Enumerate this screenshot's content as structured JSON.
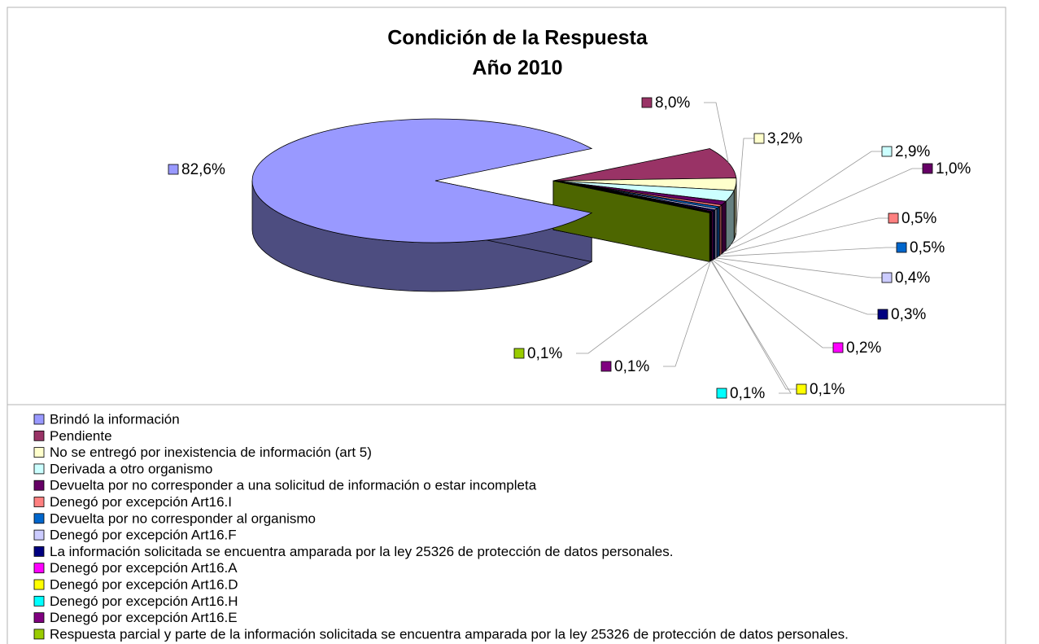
{
  "chart_data": {
    "type": "pie",
    "title": "Condición de la Respuesta",
    "subtitle": "Año 2010",
    "categories": [
      "Brindó la información",
      "Pendiente",
      "No se entregó por inexistencia de información (art 5)",
      "Derivada a otro organismo",
      "Devuelta por no corresponder a una solicitud de información o estar incompleta",
      "Denegó por excepción Art16.I",
      "Devuelta por no corresponder al organismo",
      "Denegó por excepción Art16.F",
      "La información solicitada se encuentra amparada por la ley 25326 de protección de datos personales.",
      "Denegó por excepción Art16.A",
      "Denegó por excepción Art16.D",
      "Denegó por excepción Art16.H",
      "Denegó por excepción Art16.E",
      "Respuesta parcial y parte de la información solicitada se encuentra amparada por la ley 25326 de protección de datos personales."
    ],
    "values": [
      82.6,
      8.0,
      3.2,
      2.9,
      1.0,
      0.5,
      0.5,
      0.4,
      0.3,
      0.2,
      0.1,
      0.1,
      0.1,
      0.1
    ],
    "value_labels": [
      "82,6%",
      "8,0%",
      "3,2%",
      "2,9%",
      "1,0%",
      "0,5%",
      "0,5%",
      "0,4%",
      "0,3%",
      "0,2%",
      "0,1%",
      "0,1%",
      "0,1%",
      "0,1%"
    ],
    "colors": [
      "#9999ff",
      "#993366",
      "#ffffcc",
      "#ccffff",
      "#660066",
      "#ff8080",
      "#0066cc",
      "#ccccff",
      "#000080",
      "#ff00ff",
      "#ffff00",
      "#00ffff",
      "#800080",
      "#99cc00"
    ],
    "legend": "bottom"
  }
}
